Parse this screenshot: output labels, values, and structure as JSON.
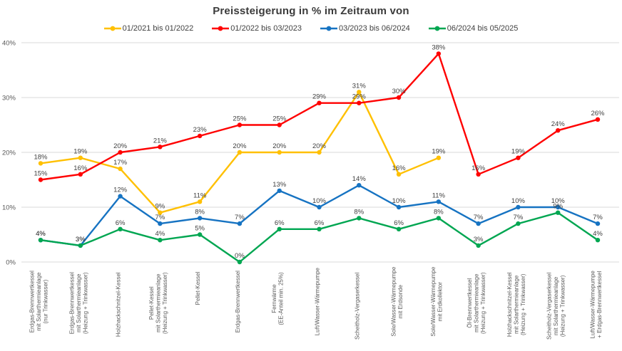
{
  "chart_data": {
    "type": "line",
    "title": "Preissteigerung in % im Zeitraum von",
    "categories": [
      "Erdgas-Brennwertkessel\nmit Solarthermieanlage\n(nur Trinkwasser)",
      "Erdgas-Brennwertkessel\nmit Solarthermieanlage\n(Heizung + Trinkwasser)",
      "Holzhackschnitzel-Kessel",
      "Pellet-Kessel\nmit Solarthermieanlage\n(Heizung + Trinkwasser)",
      "Pellet-Kessel",
      "Erdgas-Brennwertkessel",
      "Fernwärme\n(EE-Anteil min. 25%)",
      "Luft/Wasser-Wärmepumpe",
      "Scheitholz-Vergaserkessel",
      "Sole/Wasser-Wärmepumpe\nmit Erdsonde",
      "Sole/Wasser-Wärmepumpe\nmit Erdkollektor",
      "Öl-Brennwertkessel\nmit Solarthermieanlage\n(Heizung + Trinkwasser)",
      "Holzhackschnitzel-Kessel\nmit Solarthermieanlage\n(Heizung + Trinkwasser)",
      "Scheitholz-Vergaserkessel\nmit Solarthermieanlage\n(Heizung + Trinkwasser)",
      "Luft/Wasser-Wärmepumpe\n+ Erdgas-Brennwertkessel"
    ],
    "series": [
      {
        "name": "01/2021 bis 01/2022",
        "color": "#FFC000",
        "values": [
          18,
          19,
          17,
          9,
          11,
          20,
          20,
          20,
          31,
          16,
          19,
          null,
          null,
          null,
          null
        ]
      },
      {
        "name": "01/2022 bis 03/2023",
        "color": "#FF0000",
        "values": [
          15,
          16,
          20,
          21,
          23,
          25,
          25,
          29,
          29,
          30,
          38,
          16,
          19,
          24,
          26
        ]
      },
      {
        "name": "03/2023 bis 06/2024",
        "color": "#1673C2",
        "values": [
          4,
          3,
          12,
          7,
          8,
          7,
          13,
          10,
          14,
          10,
          11,
          7,
          10,
          10,
          7
        ]
      },
      {
        "name": "06/2024 bis 05/2025",
        "color": "#00A651",
        "values": [
          4,
          3,
          6,
          4,
          5,
          0,
          6,
          6,
          8,
          6,
          8,
          3,
          7,
          9,
          4
        ]
      }
    ],
    "xlabel": "",
    "ylabel": "",
    "ylim": [
      0,
      40
    ],
    "yticks": [
      {
        "value": 0,
        "label": "0%"
      },
      {
        "value": 10,
        "label": "10%"
      },
      {
        "value": 20,
        "label": "20%"
      },
      {
        "value": 30,
        "label": "30%"
      },
      {
        "value": 40,
        "label": "40%"
      }
    ],
    "data_label_suffix": "%",
    "grid": true,
    "legend_position": "top",
    "colors": {
      "grid": "#D9D9D9",
      "axis_text": "#595959",
      "data_label_text": "#404040",
      "title_text": "#3b3b3b",
      "background": "#FFFFFF"
    }
  }
}
